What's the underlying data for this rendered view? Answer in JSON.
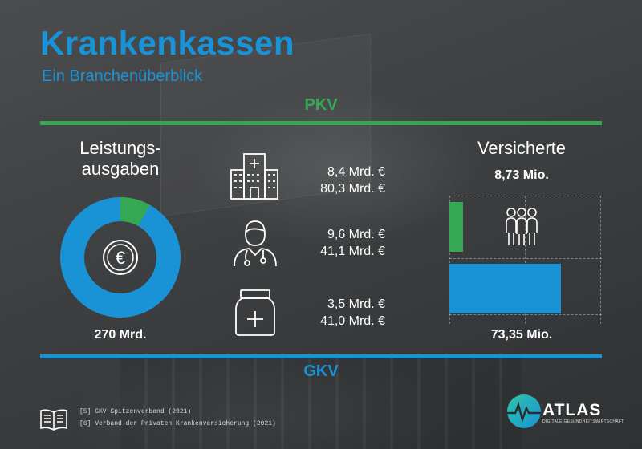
{
  "header": {
    "title": "Krankenkassen",
    "subtitle": "Ein Branchenüberblick"
  },
  "sections": {
    "top_label": "PKV",
    "bottom_label": "GKV"
  },
  "colors": {
    "pkv": "#34a853",
    "gkv": "#1a93d6"
  },
  "spending": {
    "title_line1": "Leistungs-",
    "title_line2": "ausgaben",
    "total": "270 Mrd.",
    "icon": "euro-coin-icon",
    "pkv_share": 0.082,
    "categories": [
      {
        "name": "hospital",
        "icon": "hospital-icon",
        "pkv": "8,4 Mrd. €",
        "gkv": "80,3 Mrd. €"
      },
      {
        "name": "doctor",
        "icon": "doctor-icon",
        "pkv": "9,6 Mrd. €",
        "gkv": "41,1 Mrd. €"
      },
      {
        "name": "medication",
        "icon": "medicine-bottle-icon",
        "pkv": "3,5 Mrd. €",
        "gkv": "41,0 Mrd. €"
      }
    ]
  },
  "insured": {
    "title": "Versicherte",
    "pkv_value": "8,73 Mio.",
    "gkv_value": "73,35 Mio.",
    "icon": "people-group-icon"
  },
  "chart_data": {
    "type": "bar",
    "orientation": "horizontal",
    "categories": [
      "PKV",
      "GKV"
    ],
    "values": [
      8.73,
      73.35
    ],
    "unit": "Mio.",
    "colors": [
      "#34a853",
      "#1a93d6"
    ],
    "xlim": [
      0,
      100
    ],
    "grid": true
  },
  "sources": [
    "[5] GKV Spitzenverband (2021)",
    "[6] Verband der Privaten Krankenversicherung (2021)"
  ],
  "logo": {
    "name": "ATLAS",
    "tagline": "DIGITALE GESUNDHEITSWIRTSCHAFT"
  }
}
